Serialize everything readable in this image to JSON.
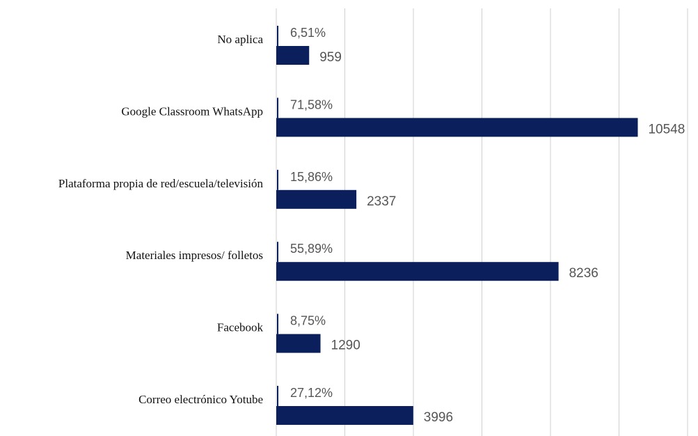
{
  "chart_data": {
    "type": "bar",
    "orientation": "horizontal",
    "categories": [
      "No aplica",
      "Google Classroom WhatsApp",
      "Plataforma propia de red/escuela/televisión",
      "Materiales impresos/ folletos",
      "Facebook",
      "Correo electrónico Yotube"
    ],
    "values": [
      959,
      10548,
      2337,
      8236,
      1290,
      3996
    ],
    "percentages": [
      "6,51%",
      "71,58%",
      "15,86%",
      "55,89%",
      "8,75%",
      "27,12%"
    ],
    "xlim": [
      0,
      12000
    ],
    "grid": true,
    "bar_color": "#0b1f5c",
    "title": "",
    "xlabel": "",
    "ylabel": ""
  }
}
